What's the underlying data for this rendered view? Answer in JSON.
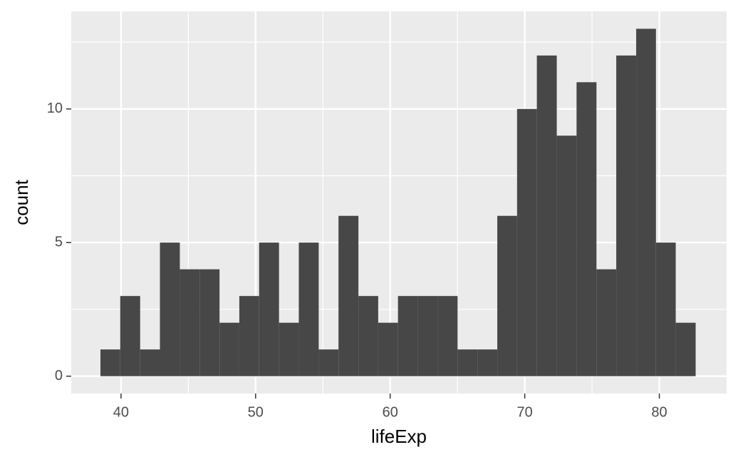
{
  "chart_data": {
    "type": "histogram",
    "x_label": "lifeExp",
    "y_label": "count",
    "bins": [
      38.47,
      39.94,
      41.42,
      42.89,
      44.37,
      45.84,
      47.32,
      48.79,
      50.26,
      51.74,
      53.21,
      54.69,
      56.16,
      57.64,
      59.11,
      60.58,
      62.06,
      63.53,
      65.01,
      66.48,
      67.96,
      69.43,
      70.9,
      72.38,
      73.85,
      75.33,
      76.8,
      78.28,
      79.75,
      81.22,
      82.7
    ],
    "counts": [
      1,
      3,
      1,
      5,
      4,
      4,
      2,
      3,
      5,
      2,
      5,
      1,
      6,
      3,
      2,
      3,
      3,
      3,
      1,
      1,
      6,
      10,
      12,
      9,
      11,
      4,
      12,
      13,
      5,
      2
    ],
    "color": "#474747",
    "xlim": [
      36.3,
      85.0
    ],
    "xticks": [
      40,
      50,
      60,
      70,
      80
    ],
    "xminor": [
      45,
      55,
      65,
      75
    ],
    "ylim": [
      -0.65,
      13.65
    ],
    "yticks": [
      0,
      5,
      10
    ],
    "yminor": [
      2.5,
      7.5,
      12.5
    ],
    "grid": true,
    "panel_color": "#ebebeb"
  }
}
